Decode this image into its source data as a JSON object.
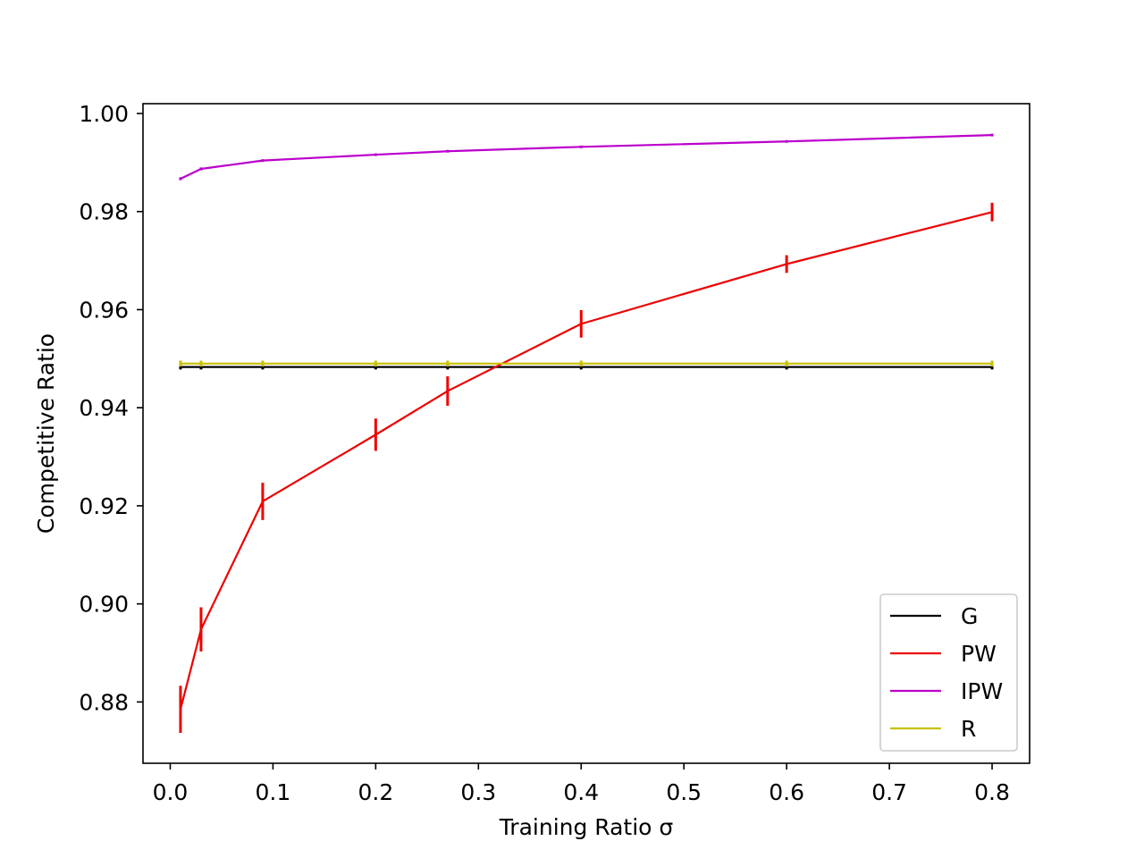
{
  "chart_data": {
    "type": "line",
    "title": "",
    "xlabel": "Training Ratio σ",
    "ylabel": "Competitive Ratio",
    "xlim": [
      -0.0265,
      0.8365
    ],
    "ylim": [
      0.8675,
      1.002
    ],
    "grid": false,
    "legend_position": "lower-right",
    "x": [
      0.01,
      0.03,
      0.09,
      0.2,
      0.27,
      0.4,
      0.6,
      0.8
    ],
    "xticks": [
      0.0,
      0.1,
      0.2,
      0.3,
      0.4,
      0.5,
      0.6,
      0.7,
      0.8
    ],
    "xtick_labels": [
      "0.0",
      "0.1",
      "0.2",
      "0.3",
      "0.4",
      "0.5",
      "0.6",
      "0.7",
      "0.8"
    ],
    "yticks": [
      0.88,
      0.9,
      0.92,
      0.94,
      0.96,
      0.98,
      1.0
    ],
    "ytick_labels": [
      "0.88",
      "0.90",
      "0.92",
      "0.94",
      "0.96",
      "0.98",
      "1.00"
    ],
    "series": [
      {
        "name": "G",
        "color": "#000000",
        "values": [
          0.9483,
          0.9483,
          0.9483,
          0.9483,
          0.9483,
          0.9483,
          0.9483,
          0.9483
        ],
        "errors": [
          0.0005,
          0.0005,
          0.0005,
          0.0005,
          0.0005,
          0.0005,
          0.0005,
          0.0005
        ]
      },
      {
        "name": "PW",
        "color": "#ee0000",
        "values": [
          0.8785,
          0.8948,
          0.9209,
          0.9345,
          0.9434,
          0.9571,
          0.9693,
          0.9799
        ],
        "errors": [
          0.0048,
          0.0045,
          0.0038,
          0.0033,
          0.003,
          0.0028,
          0.0018,
          0.0019
        ]
      },
      {
        "name": "IPW",
        "color": "#bb00cc",
        "values": [
          0.9867,
          0.9887,
          0.9904,
          0.9916,
          0.9923,
          0.9932,
          0.9943,
          0.9956
        ],
        "errors": [
          0.0003,
          0.0003,
          0.0002,
          0.0002,
          0.0001,
          0.0001,
          0.0001,
          0.0001
        ]
      },
      {
        "name": "R",
        "color": "#c8c000",
        "values": [
          0.949,
          0.949,
          0.949,
          0.949,
          0.949,
          0.949,
          0.949,
          0.949
        ],
        "errors": [
          0.0006,
          0.0006,
          0.0006,
          0.0006,
          0.0006,
          0.0006,
          0.0006,
          0.0006
        ]
      }
    ]
  }
}
